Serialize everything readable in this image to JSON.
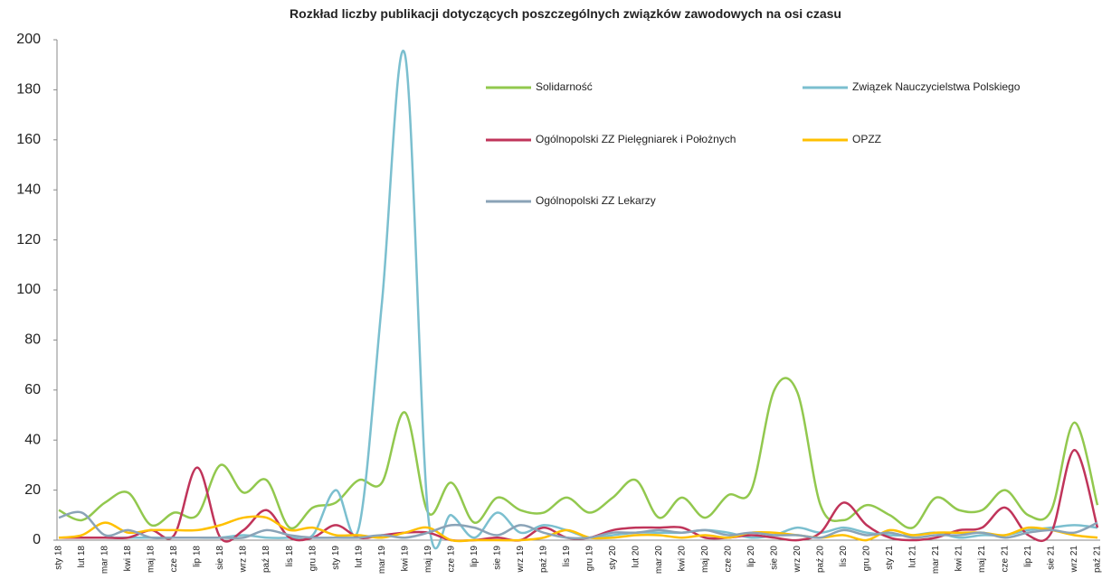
{
  "chart_data": {
    "type": "line",
    "title": "Rozkład liczby publikacji dotyczących poszczególnych związków zawodowych na osi czasu",
    "categories": [
      "sty 18",
      "lut 18",
      "mar 18",
      "kwi 18",
      "maj 18",
      "cze 18",
      "lip 18",
      "sie 18",
      "wrz 18",
      "paź 18",
      "lis 18",
      "gru 18",
      "sty 19",
      "lut 19",
      "mar 19",
      "kwi 19",
      "maj 19",
      "cze 19",
      "lip 19",
      "sie 19",
      "wrz 19",
      "paź 19",
      "lis 19",
      "gru 19",
      "sty 20",
      "lut 20",
      "mar 20",
      "kwi 20",
      "maj 20",
      "cze 20",
      "lip 20",
      "sie 20",
      "wrz 20",
      "paź 20",
      "lis 20",
      "gru 20",
      "sty 21",
      "lut 21",
      "mar 21",
      "kwi 21",
      "maj 21",
      "cze 21",
      "lip 21",
      "sie 21",
      "wrz 21",
      "paź 21"
    ],
    "series": [
      {
        "name": "Solidarność",
        "color": "#92c84e",
        "values": [
          12,
          8,
          15,
          19,
          6,
          11,
          10,
          30,
          19,
          24,
          5,
          13,
          15,
          24,
          23,
          51,
          11,
          23,
          7,
          17,
          12,
          11,
          17,
          11,
          17,
          24,
          9,
          17,
          9,
          18,
          20,
          60,
          59,
          14,
          8,
          14,
          10,
          5,
          17,
          12,
          12,
          20,
          10,
          12,
          47,
          14
        ]
      },
      {
        "name": "Związek Nauczycielstwa Polskiego",
        "color": "#7bbfcf",
        "values": [
          1,
          1,
          1,
          1,
          1,
          1,
          1,
          1,
          2,
          1,
          1,
          2,
          20,
          5,
          95,
          194,
          10,
          10,
          1,
          11,
          3,
          6,
          4,
          1,
          2,
          3,
          3,
          3,
          4,
          3,
          1,
          2,
          5,
          3,
          5,
          3,
          2,
          2,
          3,
          1,
          2,
          2,
          4,
          5,
          6,
          5
        ]
      },
      {
        "name": "Ogólnopolski ZZ Pielęgniarek i Położnych",
        "color": "#c0345a",
        "values": [
          1,
          1,
          1,
          1,
          4,
          2,
          29,
          1,
          4,
          12,
          1,
          1,
          6,
          1,
          2,
          3,
          3,
          0,
          0,
          1,
          0,
          5,
          1,
          1,
          4,
          5,
          5,
          5,
          1,
          1,
          2,
          1,
          0,
          3,
          15,
          6,
          1,
          0,
          1,
          4,
          5,
          13,
          2,
          3,
          36,
          5
        ]
      },
      {
        "name": "OPZZ",
        "color": "#ffc000",
        "values": [
          1,
          2,
          7,
          3,
          4,
          4,
          4,
          6,
          9,
          9,
          4,
          5,
          2,
          2,
          1,
          3,
          5,
          0,
          0,
          0,
          0,
          1,
          4,
          1,
          1,
          2,
          2,
          1,
          2,
          1,
          3,
          3,
          2,
          1,
          2,
          0,
          4,
          2,
          3,
          3,
          3,
          2,
          5,
          4,
          2,
          1
        ]
      },
      {
        "name": "Ogólnopolski ZZ Lekarzy",
        "color": "#8aa3b7",
        "values": [
          9,
          11,
          2,
          4,
          1,
          1,
          1,
          1,
          1,
          4,
          2,
          1,
          1,
          1,
          2,
          1,
          3,
          6,
          5,
          2,
          6,
          3,
          1,
          1,
          3,
          3,
          4,
          3,
          4,
          2,
          3,
          2,
          2,
          1,
          4,
          2,
          3,
          1,
          2,
          2,
          3,
          1,
          3,
          4,
          3,
          7
        ]
      }
    ],
    "ylim": [
      0,
      200
    ],
    "yticks": [
      0,
      20,
      40,
      60,
      80,
      100,
      120,
      140,
      160,
      180,
      200
    ]
  }
}
